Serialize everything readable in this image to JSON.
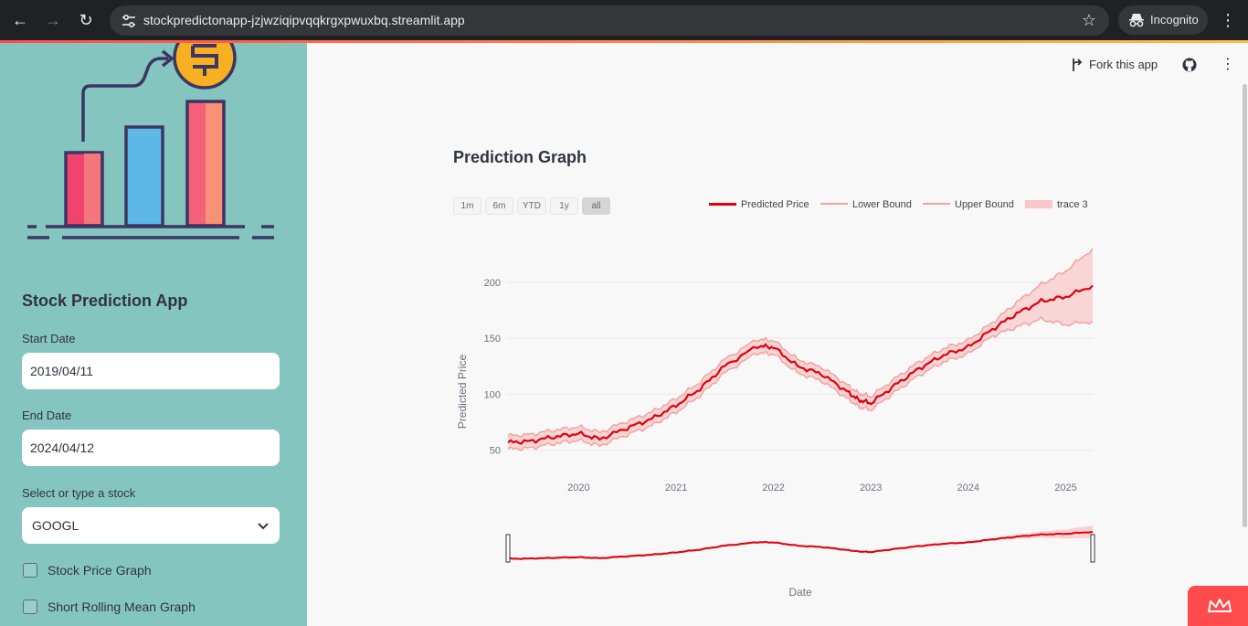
{
  "browser": {
    "url": "stockpredictonapp-jzjwziqipvqqkrgxpwuxbq.streamlit.app",
    "incognito_label": "Incognito"
  },
  "sidebar": {
    "title": "Stock Prediction App",
    "start_date_label": "Start Date",
    "start_date_value": "2019/04/11",
    "end_date_label": "End Date",
    "end_date_value": "2024/04/12",
    "stock_select_label": "Select or type a stock",
    "stock_select_value": "GOOGL",
    "checkboxes": [
      {
        "label": "Stock Price Graph",
        "checked": false
      },
      {
        "label": "Short Rolling Mean Graph",
        "checked": false
      }
    ]
  },
  "toolbar": {
    "fork_label": "Fork this app"
  },
  "main": {
    "section_title": "Prediction Graph"
  },
  "chart_data": {
    "type": "line",
    "title": "",
    "xlabel": "Date",
    "ylabel": "Predicted Price",
    "ylim": [
      40,
      230
    ],
    "y_ticks": [
      50,
      100,
      150,
      200
    ],
    "x_tick_labels": [
      "2020",
      "2021",
      "2022",
      "2023",
      "2024",
      "2025"
    ],
    "range_selector": [
      "1m",
      "6m",
      "YTD",
      "1y",
      "all"
    ],
    "range_selector_active": "all",
    "legend": [
      "Predicted Price",
      "Lower Bound",
      "Upper Bound",
      "trace 3"
    ],
    "legend_position": "top-right",
    "grid": true,
    "rangeslider": true,
    "colors": {
      "predicted": "#e0000f",
      "bounds": "#f5a3a3",
      "fill": "#f8c8c8"
    },
    "series": [
      {
        "name": "Predicted Price",
        "x": [
          "2019-04-11",
          "2019-07-01",
          "2019-10-01",
          "2020-01-01",
          "2020-03-20",
          "2020-07-01",
          "2020-10-01",
          "2021-01-01",
          "2021-04-01",
          "2021-07-01",
          "2021-11-01",
          "2022-01-01",
          "2022-04-01",
          "2022-07-01",
          "2022-10-01",
          "2022-11-15",
          "2023-01-01",
          "2023-04-01",
          "2023-07-01",
          "2023-10-01",
          "2024-01-01",
          "2024-04-01",
          "2024-07-01",
          "2024-10-01",
          "2025-01-01",
          "2025-04-12"
        ],
        "values": [
          57,
          58,
          62,
          65,
          60,
          70,
          78,
          90,
          105,
          125,
          143,
          142,
          125,
          118,
          103,
          95,
          92,
          108,
          123,
          135,
          142,
          158,
          172,
          183,
          187,
          197
        ]
      },
      {
        "name": "Lower Bound",
        "x": [
          "2019-04-11",
          "2019-07-01",
          "2019-10-01",
          "2020-01-01",
          "2020-03-20",
          "2020-07-01",
          "2020-10-01",
          "2021-01-01",
          "2021-04-01",
          "2021-07-01",
          "2021-11-01",
          "2022-01-01",
          "2022-04-01",
          "2022-07-01",
          "2022-10-01",
          "2022-11-15",
          "2023-01-01",
          "2023-04-01",
          "2023-07-01",
          "2023-10-01",
          "2024-01-01",
          "2024-04-01",
          "2024-07-01",
          "2024-10-01",
          "2025-01-01",
          "2025-04-12"
        ],
        "values": [
          51,
          52,
          56,
          59,
          54,
          64,
          72,
          84,
          99,
          119,
          137,
          136,
          119,
          112,
          97,
          89,
          86,
          102,
          117,
          129,
          136,
          152,
          160,
          167,
          162,
          165
        ]
      },
      {
        "name": "Upper Bound",
        "x": [
          "2019-04-11",
          "2019-07-01",
          "2019-10-01",
          "2020-01-01",
          "2020-03-20",
          "2020-07-01",
          "2020-10-01",
          "2021-01-01",
          "2021-04-01",
          "2021-07-01",
          "2021-11-01",
          "2022-01-01",
          "2022-04-01",
          "2022-07-01",
          "2022-10-01",
          "2022-11-15",
          "2023-01-01",
          "2023-04-01",
          "2023-07-01",
          "2023-10-01",
          "2024-01-01",
          "2024-04-01",
          "2024-07-01",
          "2024-10-01",
          "2025-01-01",
          "2025-04-12"
        ],
        "values": [
          63,
          64,
          68,
          71,
          66,
          76,
          84,
          96,
          111,
          131,
          149,
          148,
          131,
          124,
          109,
          101,
          98,
          114,
          129,
          141,
          148,
          164,
          182,
          198,
          210,
          230
        ]
      }
    ]
  }
}
